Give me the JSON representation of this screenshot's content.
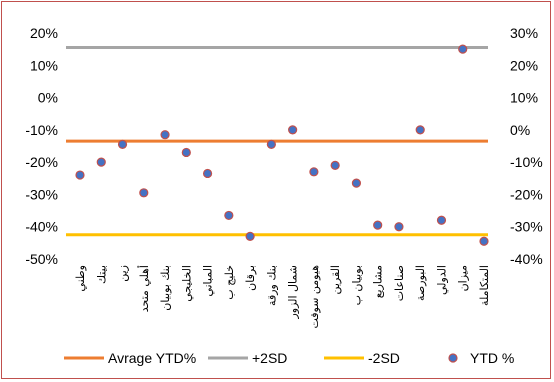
{
  "chart_data": {
    "type": "scatter",
    "title": "",
    "categories": [
      "وطني",
      "بيتك",
      "زين",
      "أهلي متحد",
      "بنك بوبيان",
      "الخليجي",
      "المباني",
      "خليج ب",
      "برقان",
      "بنك ورقة",
      "شمال الزور",
      "هيومن سوفت",
      "القرين",
      "بوبيان ب",
      "مشاريع",
      "صناعات",
      "البورصة",
      "الدولي",
      "ميزان",
      "المتكاملة"
    ],
    "left_axis": {
      "ylim": [
        -50,
        20
      ],
      "ticks": [
        20,
        10,
        0,
        -10,
        -20,
        -30,
        -40,
        -50
      ],
      "tick_labels": [
        "20%",
        "10%",
        "0%",
        "-10%",
        "-20%",
        "-30%",
        "-40%",
        "-50%"
      ]
    },
    "right_axis": {
      "ylim": [
        -40,
        30
      ],
      "ticks": [
        30,
        20,
        10,
        0,
        -10,
        -20,
        -30,
        -40
      ],
      "tick_labels": [
        "30%",
        "20%",
        "10%",
        "0%",
        "-10%",
        "-20%",
        "-30%",
        "-40%"
      ]
    },
    "reference_lines": [
      {
        "name": "Avrage YTD%",
        "y": -3.5,
        "axis": "right",
        "color": "#ed7d31"
      },
      {
        "name": "+2SD",
        "y": 25.5,
        "axis": "right",
        "color": "#a5a5a5"
      },
      {
        "name": "-2SD",
        "y": -32.5,
        "axis": "right",
        "color": "#ffc000"
      }
    ],
    "series": [
      {
        "name": "YTD %",
        "axis": "right",
        "color": "#4472c4",
        "values": [
          -14,
          -10,
          -4.5,
          -19.5,
          -1.5,
          -7,
          -13.5,
          -26.5,
          -33,
          -4.5,
          0,
          -13,
          -11,
          -16.5,
          -29.5,
          -30,
          0,
          -28,
          25,
          -34.5
        ]
      }
    ],
    "legend_position": "bottom",
    "grid": false
  }
}
